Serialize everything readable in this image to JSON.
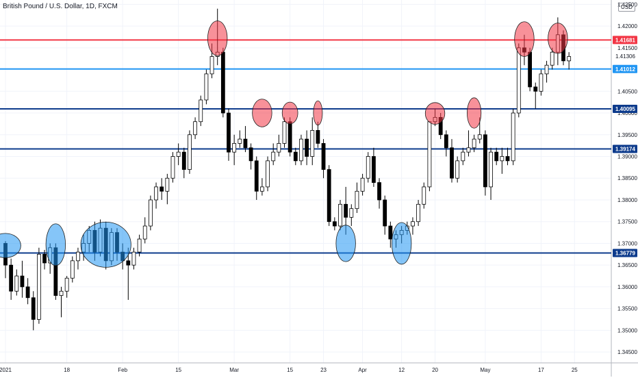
{
  "chart_data": {
    "type": "candlestick",
    "title": "British Pound / U.S. Dollar, 1D, FXCM",
    "currency": "USD",
    "ylim": [
      1.3425,
      1.426
    ],
    "y_ticks": [
      "1.42500",
      "1.42000",
      "1.41500",
      "1.40500",
      "1.40000",
      "1.39500",
      "1.39000",
      "1.38500",
      "1.38000",
      "1.37500",
      "1.37000",
      "1.36500",
      "1.36000",
      "1.35500",
      "1.35000",
      "1.34500"
    ],
    "x_ticks": [
      {
        "label": "2021",
        "i": 0
      },
      {
        "label": "18",
        "i": 11
      },
      {
        "label": "Feb",
        "i": 21
      },
      {
        "label": "15",
        "i": 31
      },
      {
        "label": "Mar",
        "i": 41
      },
      {
        "label": "15",
        "i": 51
      },
      {
        "label": "23",
        "i": 57
      },
      {
        "label": "Apr",
        "i": 64
      },
      {
        "label": "12",
        "i": 71
      },
      {
        "label": "20",
        "i": 77
      },
      {
        "label": "May",
        "i": 86
      },
      {
        "label": "17",
        "i": 96
      },
      {
        "label": "25",
        "i": 102
      }
    ],
    "price_lines": [
      {
        "value": 1.41681,
        "label": "1.41681",
        "color": "#f23645"
      },
      {
        "value": 1.41306,
        "label": "1.41306",
        "color": null
      },
      {
        "value": 1.41012,
        "label": "1.41012",
        "color": "#2196f3"
      },
      {
        "value": 1.40095,
        "label": "1.40095",
        "color": "#0d3b8c"
      },
      {
        "value": 1.39174,
        "label": "1.39174",
        "color": "#0d3b8c"
      },
      {
        "value": 1.36779,
        "label": "1.36779",
        "color": "#0d3b8c"
      }
    ],
    "candles": [
      [
        1.37,
        1.3705,
        1.362,
        1.365
      ],
      [
        1.365,
        1.3665,
        1.357,
        1.359
      ],
      [
        1.359,
        1.364,
        1.358,
        1.3625
      ],
      [
        1.3625,
        1.366,
        1.3575,
        1.36
      ],
      [
        1.36,
        1.362,
        1.356,
        1.3575
      ],
      [
        1.3575,
        1.359,
        1.35,
        1.3525
      ],
      [
        1.3525,
        1.369,
        1.3515,
        1.3675
      ],
      [
        1.3675,
        1.3685,
        1.364,
        1.3655
      ],
      [
        1.3655,
        1.37,
        1.363,
        1.369
      ],
      [
        1.369,
        1.37,
        1.357,
        1.358
      ],
      [
        1.358,
        1.36,
        1.353,
        1.359
      ],
      [
        1.359,
        1.3625,
        1.3575,
        1.362
      ],
      [
        1.362,
        1.367,
        1.361,
        1.366
      ],
      [
        1.366,
        1.369,
        1.364,
        1.368
      ],
      [
        1.368,
        1.372,
        1.366,
        1.37
      ],
      [
        1.37,
        1.374,
        1.368,
        1.373
      ],
      [
        1.373,
        1.375,
        1.366,
        1.368
      ],
      [
        1.368,
        1.3755,
        1.367,
        1.3735
      ],
      [
        1.3735,
        1.375,
        1.364,
        1.366
      ],
      [
        1.366,
        1.3735,
        1.365,
        1.3725
      ],
      [
        1.3725,
        1.3735,
        1.366,
        1.368
      ],
      [
        1.368,
        1.37,
        1.364,
        1.366
      ],
      [
        1.366,
        1.369,
        1.357,
        1.365
      ],
      [
        1.365,
        1.369,
        1.364,
        1.368
      ],
      [
        1.368,
        1.372,
        1.367,
        1.371
      ],
      [
        1.371,
        1.376,
        1.37,
        1.374
      ],
      [
        1.374,
        1.381,
        1.373,
        1.38
      ],
      [
        1.38,
        1.384,
        1.378,
        1.383
      ],
      [
        1.383,
        1.385,
        1.38,
        1.382
      ],
      [
        1.382,
        1.386,
        1.379,
        1.385
      ],
      [
        1.385,
        1.391,
        1.384,
        1.39
      ],
      [
        1.39,
        1.393,
        1.388,
        1.391
      ],
      [
        1.391,
        1.392,
        1.385,
        1.387
      ],
      [
        1.387,
        1.396,
        1.386,
        1.395
      ],
      [
        1.395,
        1.399,
        1.394,
        1.398
      ],
      [
        1.398,
        1.404,
        1.397,
        1.403
      ],
      [
        1.403,
        1.41,
        1.402,
        1.409
      ],
      [
        1.409,
        1.416,
        1.408,
        1.413
      ],
      [
        1.413,
        1.424,
        1.411,
        1.414
      ],
      [
        1.414,
        1.415,
        1.399,
        1.4
      ],
      [
        1.4,
        1.401,
        1.389,
        1.391
      ],
      [
        1.391,
        1.395,
        1.388,
        1.393
      ],
      [
        1.393,
        1.396,
        1.392,
        1.394
      ],
      [
        1.394,
        1.397,
        1.391,
        1.392
      ],
      [
        1.392,
        1.393,
        1.387,
        1.389
      ],
      [
        1.389,
        1.39,
        1.38,
        1.382
      ],
      [
        1.382,
        1.385,
        1.381,
        1.383
      ],
      [
        1.383,
        1.39,
        1.382,
        1.389
      ],
      [
        1.389,
        1.393,
        1.388,
        1.391
      ],
      [
        1.391,
        1.395,
        1.39,
        1.393
      ],
      [
        1.393,
        1.399,
        1.392,
        1.398
      ],
      [
        1.398,
        1.399,
        1.39,
        1.391
      ],
      [
        1.391,
        1.392,
        1.388,
        1.389
      ],
      [
        1.389,
        1.395,
        1.388,
        1.394
      ],
      [
        1.394,
        1.396,
        1.388,
        1.39
      ],
      [
        1.39,
        1.399,
        1.388,
        1.396
      ],
      [
        1.396,
        1.398,
        1.392,
        1.393
      ],
      [
        1.393,
        1.394,
        1.385,
        1.387
      ],
      [
        1.387,
        1.388,
        1.374,
        1.375
      ],
      [
        1.375,
        1.376,
        1.373,
        1.374
      ],
      [
        1.374,
        1.38,
        1.373,
        1.379
      ],
      [
        1.379,
        1.383,
        1.372,
        1.376
      ],
      [
        1.376,
        1.379,
        1.374,
        1.378
      ],
      [
        1.378,
        1.384,
        1.377,
        1.382
      ],
      [
        1.382,
        1.386,
        1.381,
        1.385
      ],
      [
        1.385,
        1.391,
        1.384,
        1.39
      ],
      [
        1.39,
        1.392,
        1.383,
        1.384
      ],
      [
        1.384,
        1.385,
        1.378,
        1.38
      ],
      [
        1.38,
        1.381,
        1.372,
        1.374
      ],
      [
        1.374,
        1.375,
        1.369,
        1.371
      ],
      [
        1.371,
        1.373,
        1.369,
        1.372
      ],
      [
        1.372,
        1.374,
        1.37,
        1.373
      ],
      [
        1.373,
        1.375,
        1.372,
        1.374
      ],
      [
        1.374,
        1.376,
        1.372,
        1.375
      ],
      [
        1.375,
        1.38,
        1.374,
        1.379
      ],
      [
        1.379,
        1.384,
        1.378,
        1.383
      ],
      [
        1.383,
        1.398,
        1.382,
        1.398
      ],
      [
        1.398,
        1.401,
        1.397,
        1.399
      ],
      [
        1.399,
        1.4,
        1.394,
        1.395
      ],
      [
        1.395,
        1.396,
        1.39,
        1.392
      ],
      [
        1.392,
        1.394,
        1.384,
        1.385
      ],
      [
        1.385,
        1.39,
        1.384,
        1.389
      ],
      [
        1.389,
        1.392,
        1.388,
        1.391
      ],
      [
        1.391,
        1.396,
        1.39,
        1.392
      ],
      [
        1.392,
        1.395,
        1.391,
        1.394
      ],
      [
        1.394,
        1.399,
        1.393,
        1.395
      ],
      [
        1.395,
        1.396,
        1.381,
        1.383
      ],
      [
        1.383,
        1.392,
        1.38,
        1.391
      ],
      [
        1.391,
        1.392,
        1.388,
        1.389
      ],
      [
        1.389,
        1.392,
        1.386,
        1.39
      ],
      [
        1.39,
        1.392,
        1.388,
        1.389
      ],
      [
        1.389,
        1.401,
        1.388,
        1.4
      ],
      [
        1.4,
        1.416,
        1.399,
        1.415
      ],
      [
        1.415,
        1.418,
        1.411,
        1.414
      ],
      [
        1.414,
        1.415,
        1.405,
        1.406
      ],
      [
        1.406,
        1.407,
        1.401,
        1.405
      ],
      [
        1.405,
        1.41,
        1.404,
        1.409
      ],
      [
        1.409,
        1.412,
        1.407,
        1.411
      ],
      [
        1.411,
        1.415,
        1.41,
        1.414
      ],
      [
        1.414,
        1.422,
        1.411,
        1.418
      ],
      [
        1.418,
        1.419,
        1.411,
        1.412
      ],
      [
        1.412,
        1.414,
        1.41,
        1.413
      ]
    ],
    "highlight_circles": [
      {
        "i": 0,
        "price": 1.3695,
        "w": 5.5,
        "h": 0.0028,
        "kind": "support"
      },
      {
        "i": 9,
        "price": 1.3697,
        "w": 3.5,
        "h": 0.0048,
        "kind": "support"
      },
      {
        "i": 18,
        "price": 1.3697,
        "w": 9,
        "h": 0.0052,
        "kind": "support"
      },
      {
        "i": 61,
        "price": 1.37,
        "w": 3.5,
        "h": 0.0042,
        "kind": "support"
      },
      {
        "i": 71,
        "price": 1.37,
        "w": 3.5,
        "h": 0.0048,
        "kind": "support"
      },
      {
        "i": 38,
        "price": 1.4172,
        "w": 3.5,
        "h": 0.004,
        "kind": "resistance"
      },
      {
        "i": 46,
        "price": 1.4,
        "w": 3.5,
        "h": 0.0032,
        "kind": "resistance"
      },
      {
        "i": 51,
        "price": 1.4,
        "w": 2.8,
        "h": 0.0025,
        "kind": "resistance"
      },
      {
        "i": 56,
        "price": 1.4,
        "w": 1.6,
        "h": 0.0028,
        "kind": "resistance"
      },
      {
        "i": 77,
        "price": 1.3999,
        "w": 3.5,
        "h": 0.0025,
        "kind": "resistance"
      },
      {
        "i": 84,
        "price": 1.4,
        "w": 2.5,
        "h": 0.0035,
        "kind": "resistance"
      },
      {
        "i": 93,
        "price": 1.417,
        "w": 3.5,
        "h": 0.004,
        "kind": "resistance"
      },
      {
        "i": 99,
        "price": 1.4172,
        "w": 3.5,
        "h": 0.0035,
        "kind": "resistance"
      }
    ],
    "colors": {
      "up_fill": "#ffffff",
      "down_fill": "#000000",
      "outline": "#000000",
      "support_fill": "rgba(33,150,243,0.55)",
      "resistance_fill": "rgba(242,54,69,0.55)",
      "grid": "#f0f3fa",
      "axis_text": "#131722"
    }
  }
}
